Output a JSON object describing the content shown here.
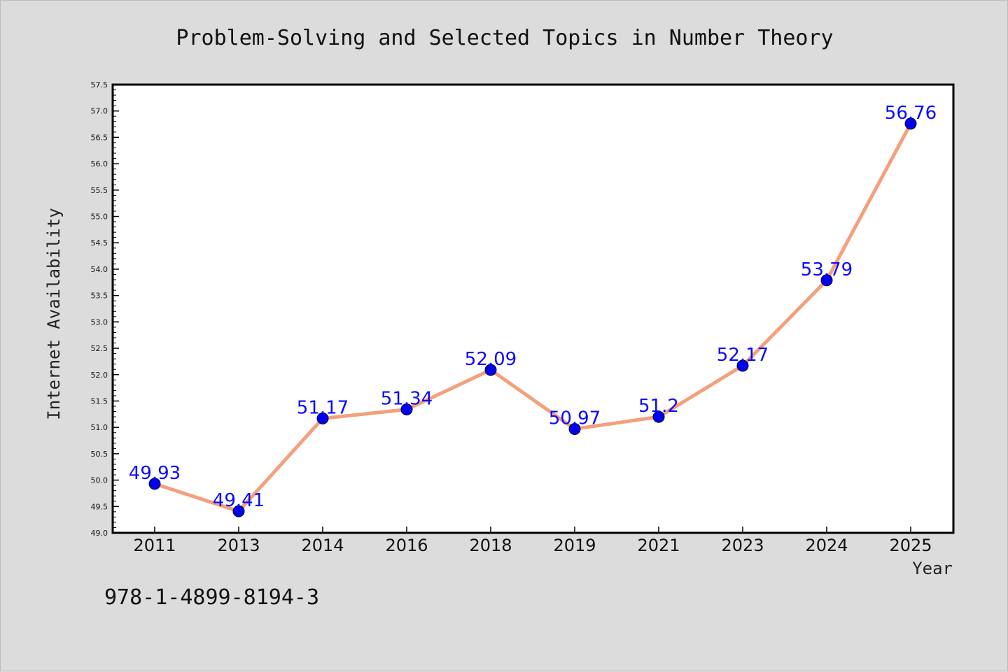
{
  "chart_data": {
    "type": "line",
    "title": "Problem-Solving and Selected Topics in Number Theory",
    "xlabel": "Year",
    "ylabel": "Internet Availability",
    "categories": [
      "2011",
      "2013",
      "2014",
      "2016",
      "2018",
      "2019",
      "2021",
      "2023",
      "2024",
      "2025"
    ],
    "series": [
      {
        "values": [
          49.93,
          49.41,
          51.17,
          51.34,
          52.09,
          50.97,
          51.2,
          52.17,
          53.79,
          56.76
        ],
        "labels": [
          "49.93",
          "49.41",
          "51.17",
          "51.34",
          "52.09",
          "50.97",
          "51.2",
          "52.17",
          "53.79",
          "56.76"
        ]
      }
    ],
    "ylim": [
      49.0,
      57.5
    ],
    "yticks": [
      "49.0",
      "49.5",
      "50.0",
      "50.5",
      "51.0",
      "51.5",
      "52.0",
      "52.5",
      "53.0",
      "53.5",
      "54.0",
      "54.5",
      "55.0",
      "55.5",
      "56.0",
      "56.5",
      "57.0",
      "57.5"
    ],
    "grid": false,
    "line_color": "#f4a07c",
    "marker_color": "#0000ee",
    "label_color": "#0a0aff",
    "plot_background": "#ffffff",
    "page_background": "#dcdcdc"
  },
  "footnote": "978-1-4899-8194-3"
}
